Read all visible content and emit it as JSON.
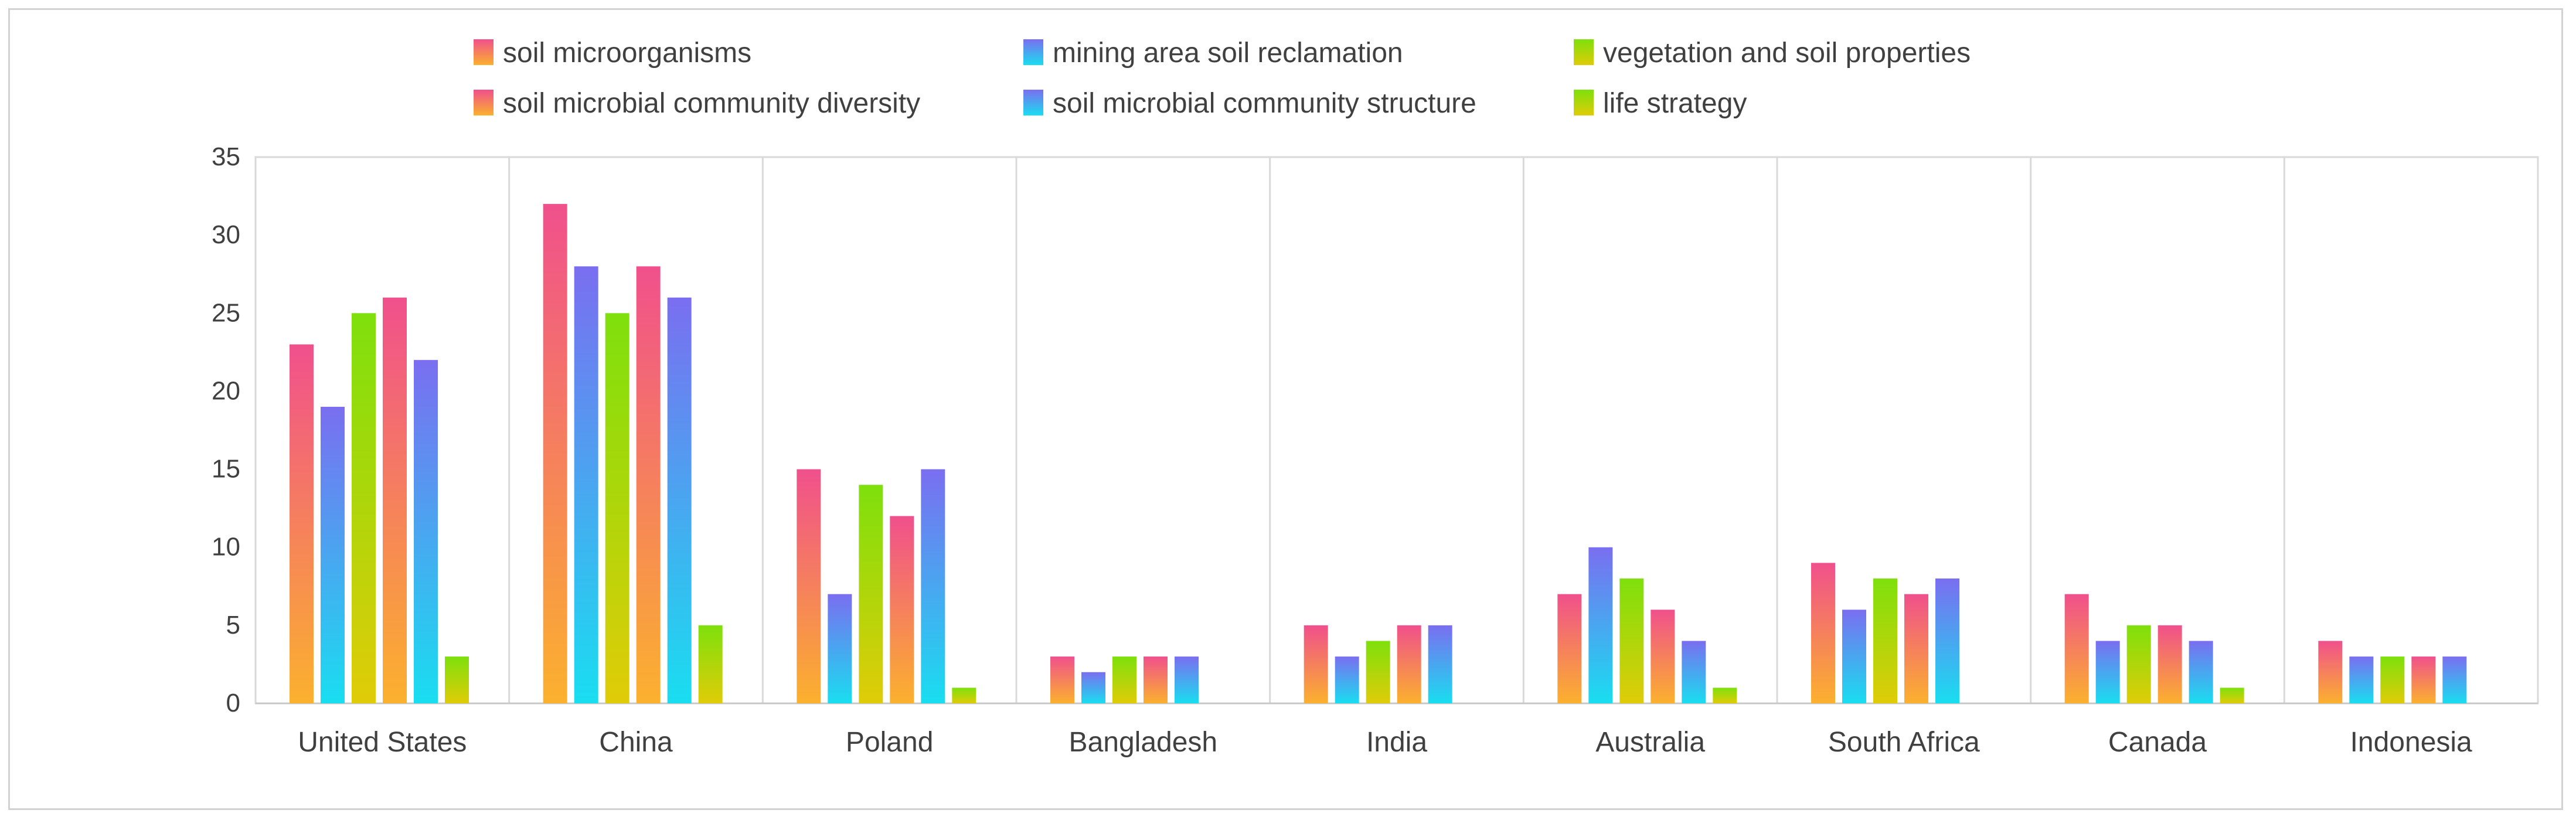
{
  "chart_data": {
    "type": "bar",
    "title": "",
    "xlabel": "",
    "ylabel": "",
    "ylim": [
      0,
      35
    ],
    "yticks": [
      0,
      5,
      10,
      15,
      20,
      25,
      30,
      35
    ],
    "grid": "vertical category separators",
    "legend_position": "top-center",
    "categories": [
      "United States",
      "China",
      "Poland",
      "Bangladesh",
      "India",
      "Australia",
      "South Africa",
      "Canada",
      "Indonesia"
    ],
    "series": [
      {
        "name": "soil microorganisms",
        "gradient": [
          "#f0508c",
          "#fbb12e"
        ],
        "values": [
          23,
          32,
          15,
          3,
          5,
          7,
          9,
          7,
          4
        ]
      },
      {
        "name": "mining area soil reclamation",
        "gradient": [
          "#7a6ef0",
          "#19def0"
        ],
        "values": [
          19,
          28,
          7,
          2,
          3,
          10,
          6,
          4,
          3
        ]
      },
      {
        "name": "vegetation and soil properties",
        "gradient": [
          "#7ee00c",
          "#e0cc08"
        ],
        "values": [
          25,
          25,
          14,
          3,
          4,
          8,
          8,
          5,
          3
        ]
      },
      {
        "name": "soil microbial community diversity",
        "gradient": [
          "#f0508c",
          "#fbb12e"
        ],
        "values": [
          26,
          28,
          12,
          3,
          5,
          6,
          7,
          5,
          3
        ]
      },
      {
        "name": "soil microbial community structure",
        "gradient": [
          "#7a6ef0",
          "#19def0"
        ],
        "values": [
          22,
          26,
          15,
          3,
          5,
          4,
          8,
          4,
          3
        ]
      },
      {
        "name": "life strategy",
        "gradient": [
          "#7ee00c",
          "#e0cc08"
        ],
        "values": [
          3,
          5,
          1,
          0,
          0,
          1,
          0,
          1,
          0
        ]
      }
    ]
  }
}
